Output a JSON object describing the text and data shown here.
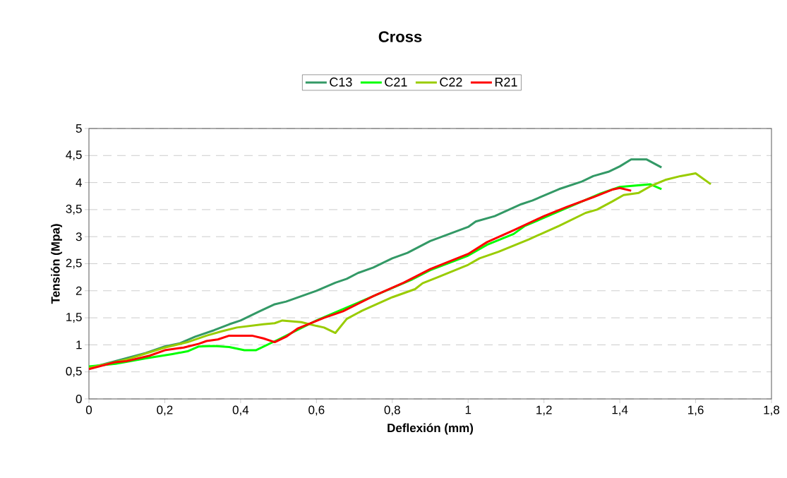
{
  "chart_data": {
    "type": "line",
    "title": "Cross",
    "xlabel": "Deflexión (mm)",
    "ylabel": "Tensión (Mpa)",
    "xlim": [
      0,
      1.8
    ],
    "ylim": [
      0,
      5
    ],
    "xticks": [
      0,
      {
        "value": 0.2,
        "label": "0,2"
      },
      {
        "value": 0.4,
        "label": "0,4"
      },
      {
        "value": 0.6,
        "label": "0,6"
      },
      {
        "value": 0.8,
        "label": "0,8"
      },
      1,
      {
        "value": 1.2,
        "label": "1,2"
      },
      {
        "value": 1.4,
        "label": "1,4"
      },
      {
        "value": 1.6,
        "label": "1,6"
      },
      {
        "value": 1.8,
        "label": "1,8"
      }
    ],
    "yticks": [
      0,
      {
        "value": 0.5,
        "label": "0,5"
      },
      1,
      {
        "value": 1.5,
        "label": "1,5"
      },
      2,
      {
        "value": 2.5,
        "label": "2,5"
      },
      3,
      {
        "value": 3.5,
        "label": "3,5"
      },
      4,
      {
        "value": 4.5,
        "label": "4,5"
      },
      5
    ],
    "grid": "y",
    "legend": "top",
    "marker": "none",
    "line_style": "solid",
    "series": [
      {
        "name": "C13",
        "color": "#339966",
        "x": [
          0,
          0.07,
          0.15,
          0.2,
          0.24,
          0.28,
          0.33,
          0.37,
          0.4,
          0.45,
          0.49,
          0.52,
          0.6,
          0.65,
          0.68,
          0.71,
          0.75,
          0.8,
          0.84,
          0.9,
          0.95,
          1.0,
          1.02,
          1.07,
          1.14,
          1.17,
          1.24,
          1.3,
          1.33,
          1.37,
          1.4,
          1.43,
          1.47,
          1.51
        ],
        "values": [
          0.57,
          0.7,
          0.85,
          0.97,
          1.03,
          1.15,
          1.27,
          1.38,
          1.45,
          1.62,
          1.75,
          1.8,
          2.0,
          2.15,
          2.22,
          2.33,
          2.43,
          2.6,
          2.7,
          2.92,
          3.05,
          3.18,
          3.28,
          3.38,
          3.6,
          3.67,
          3.88,
          4.02,
          4.12,
          4.2,
          4.3,
          4.43,
          4.43,
          4.28
        ]
      },
      {
        "name": "C21",
        "color": "#00ff00",
        "x": [
          0,
          0.07,
          0.15,
          0.22,
          0.26,
          0.29,
          0.33,
          0.37,
          0.41,
          0.44,
          0.5,
          0.6,
          0.65,
          0.75,
          0.85,
          0.9,
          1.0,
          1.05,
          1.12,
          1.15,
          1.25,
          1.3,
          1.35,
          1.4,
          1.48,
          1.51
        ],
        "values": [
          0.6,
          0.65,
          0.75,
          0.83,
          0.88,
          0.97,
          0.98,
          0.96,
          0.9,
          0.9,
          1.1,
          1.45,
          1.6,
          1.9,
          2.2,
          2.38,
          2.65,
          2.85,
          3.05,
          3.2,
          3.5,
          3.65,
          3.8,
          3.92,
          3.97,
          3.88
        ]
      },
      {
        "name": "C22",
        "color": "#99cc00",
        "x": [
          0,
          0.1,
          0.2,
          0.26,
          0.31,
          0.35,
          0.39,
          0.46,
          0.49,
          0.51,
          0.56,
          0.6,
          0.62,
          0.65,
          0.68,
          0.72,
          0.8,
          0.86,
          0.88,
          0.92,
          1.0,
          1.03,
          1.08,
          1.16,
          1.24,
          1.31,
          1.34,
          1.38,
          1.41,
          1.45,
          1.48,
          1.52,
          1.56,
          1.6,
          1.64
        ],
        "values": [
          0.57,
          0.73,
          0.95,
          1.05,
          1.17,
          1.25,
          1.32,
          1.38,
          1.4,
          1.45,
          1.42,
          1.35,
          1.32,
          1.22,
          1.48,
          1.63,
          1.88,
          2.03,
          2.14,
          2.25,
          2.48,
          2.6,
          2.72,
          2.95,
          3.2,
          3.44,
          3.5,
          3.65,
          3.77,
          3.81,
          3.93,
          4.05,
          4.12,
          4.17,
          3.97
        ]
      },
      {
        "name": "R21",
        "color": "#ff0000",
        "x": [
          0,
          0.07,
          0.1,
          0.16,
          0.2,
          0.25,
          0.29,
          0.31,
          0.34,
          0.37,
          0.43,
          0.46,
          0.49,
          0.52,
          0.55,
          0.62,
          0.67,
          0.75,
          0.83,
          0.9,
          1.0,
          1.05,
          1.12,
          1.2,
          1.26,
          1.33,
          1.38,
          1.4,
          1.43
        ],
        "values": [
          0.55,
          0.68,
          0.7,
          0.8,
          0.9,
          0.95,
          1.02,
          1.07,
          1.1,
          1.17,
          1.17,
          1.12,
          1.05,
          1.15,
          1.3,
          1.5,
          1.62,
          1.9,
          2.15,
          2.4,
          2.68,
          2.9,
          3.12,
          3.38,
          3.55,
          3.73,
          3.87,
          3.9,
          3.85
        ]
      }
    ]
  }
}
